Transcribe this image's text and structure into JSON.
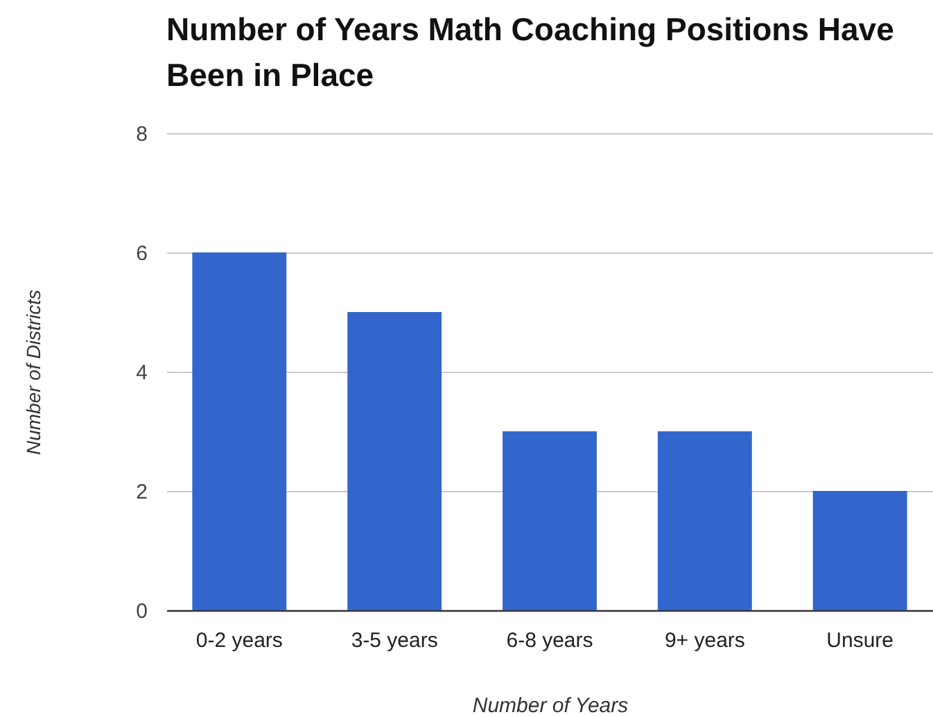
{
  "chart_data": {
    "type": "bar",
    "title": "Number of Years Math Coaching Positions Have Been in Place",
    "xlabel": "Number of Years",
    "ylabel": "Number of Districts",
    "categories": [
      "0-2 years",
      "3-5 years",
      "6-8 years",
      "9+ years",
      "Unsure"
    ],
    "values": [
      6,
      5,
      3,
      3,
      2
    ],
    "color": "#3366cc",
    "ylim": [
      0,
      8
    ],
    "yticks": [
      0,
      2,
      4,
      6,
      8
    ],
    "grid": "y"
  }
}
